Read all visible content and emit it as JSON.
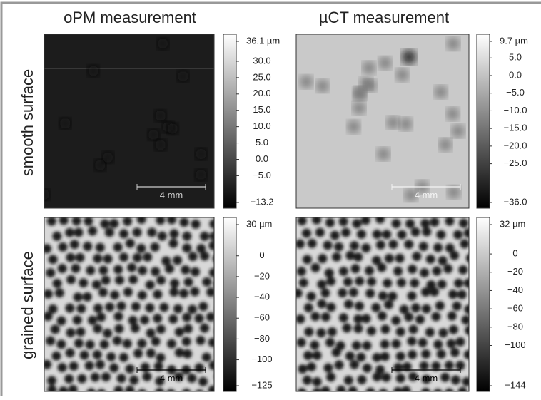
{
  "columns": [
    "oPM measurement",
    "µCT measurement"
  ],
  "rows": [
    "smooth surface",
    "grained surface"
  ],
  "panels": [
    {
      "scale_bar": "4 mm",
      "colorbar": {
        "lim": [
          -13.2,
          36.1
        ],
        "ticks": [
          {
            "value": 36.1,
            "label": "36.1 µm"
          },
          {
            "value": 30,
            "label": "30.0"
          },
          {
            "value": 25,
            "label": "25.0"
          },
          {
            "value": 20,
            "label": "20.0"
          },
          {
            "value": 15,
            "label": "15.0"
          },
          {
            "value": 10,
            "label": "10.0"
          },
          {
            "value": 5,
            "label": "5.0"
          },
          {
            "value": 0,
            "label": "0.0"
          },
          {
            "value": -5,
            "label": "−5.0"
          },
          {
            "value": -13.2,
            "label": "−13.2"
          }
        ]
      }
    },
    {
      "scale_bar": "4 mm",
      "colorbar": {
        "lim": [
          -36,
          9.7
        ],
        "ticks": [
          {
            "value": 9.7,
            "label": "9.7 µm"
          },
          {
            "value": 5,
            "label": "5.0"
          },
          {
            "value": 0,
            "label": "0.0"
          },
          {
            "value": -5,
            "label": "−5.0"
          },
          {
            "value": -10,
            "label": "−10.0"
          },
          {
            "value": -15,
            "label": "−15.0"
          },
          {
            "value": -20,
            "label": "−20.0"
          },
          {
            "value": -25,
            "label": "−25.0"
          },
          {
            "value": -36,
            "label": "−36.0"
          }
        ]
      }
    },
    {
      "scale_bar": "4 mm",
      "colorbar": {
        "lim": [
          -125,
          30
        ],
        "ticks": [
          {
            "value": 30,
            "label": "30 µm"
          },
          0,
          {
            "value": -20,
            "label": "−20"
          },
          {
            "value": -40,
            "label": "−40"
          },
          {
            "value": -60,
            "label": "−60"
          },
          {
            "value": -80,
            "label": "−80"
          },
          {
            "value": -100,
            "label": "−100"
          },
          {
            "value": -125,
            "label": "−125"
          }
        ]
      }
    },
    {
      "scale_bar": "4 mm",
      "colorbar": {
        "lim": [
          -144,
          32
        ],
        "ticks": [
          {
            "value": 32,
            "label": "32 µm"
          },
          0,
          {
            "value": -20,
            "label": "−20"
          },
          {
            "value": -40,
            "label": "−40"
          },
          {
            "value": -60,
            "label": "−60"
          },
          {
            "value": -80,
            "label": "−80"
          },
          {
            "value": -100,
            "label": "−100"
          },
          {
            "value": -144,
            "label": "−144"
          }
        ]
      }
    }
  ]
}
